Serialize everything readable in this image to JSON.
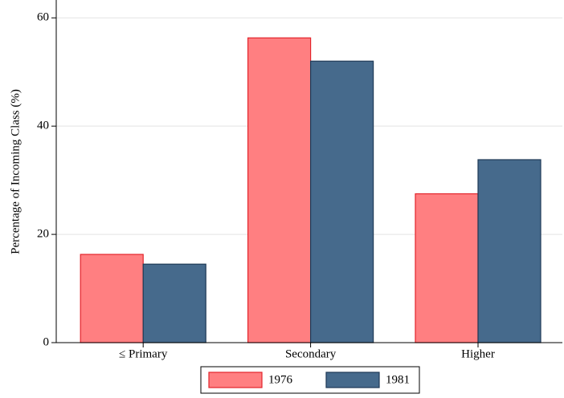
{
  "chart_data": {
    "type": "bar",
    "y_label": "Percentage of Incoming Class (%)",
    "categories": [
      "≤ Primary",
      "Secondary",
      "Higher"
    ],
    "series": [
      {
        "name": "1976",
        "color": "#ff7f81",
        "edge": "#e3242b",
        "values": [
          16.3,
          56.3,
          27.5
        ]
      },
      {
        "name": "1981",
        "color": "#466a8c",
        "edge": "#1f3a56",
        "values": [
          14.5,
          52.0,
          33.8
        ]
      }
    ],
    "ylim": [
      0,
      63.3
    ],
    "yticks": [
      0,
      20,
      40,
      60
    ],
    "grid": true,
    "legend": "bottom"
  }
}
